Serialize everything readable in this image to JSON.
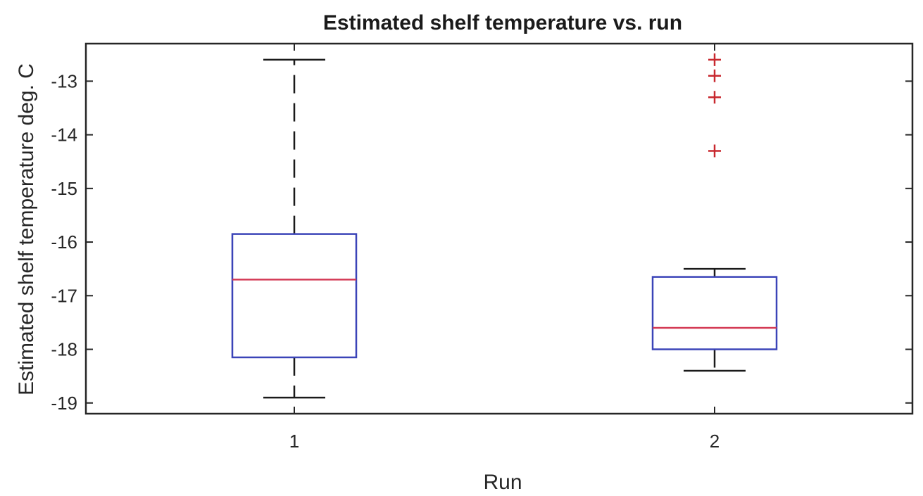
{
  "chart_data": {
    "type": "box",
    "title": "Estimated shelf temperature vs. run",
    "xlabel": "Run",
    "ylabel": "Estimated shelf temperature deg. C",
    "categories": [
      "1",
      "2"
    ],
    "yticks": [
      "-13",
      "-14",
      "-15",
      "-16",
      "-17",
      "-18",
      "-19"
    ],
    "ylim": [
      -19.2,
      -12.3
    ],
    "grid": false,
    "legend": "none",
    "boxes": [
      {
        "category": "1",
        "whisker_low": -18.9,
        "q1": -18.15,
        "median": -16.7,
        "q3": -15.85,
        "whisker_high": -12.6,
        "outliers": []
      },
      {
        "category": "2",
        "whisker_low": -18.4,
        "q1": -18.0,
        "median": -17.6,
        "q3": -16.65,
        "whisker_high": -16.5,
        "outliers": [
          -12.6,
          -12.9,
          -13.3,
          -14.3
        ]
      }
    ],
    "colors": {
      "box": "#3b44b8",
      "median": "#d43a55",
      "whisker": "#1a1a1a",
      "outlier": "#c8282f",
      "axes": "#262626"
    }
  }
}
